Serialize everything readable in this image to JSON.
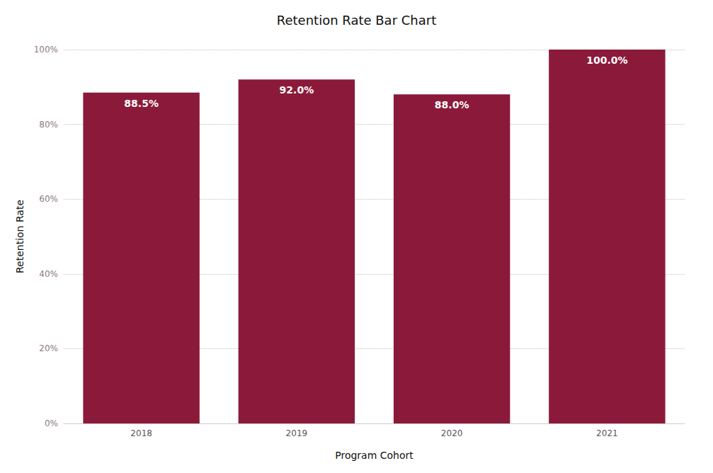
{
  "chart_data": {
    "type": "bar",
    "title": "Retention Rate Bar Chart",
    "xlabel": "Program Cohort",
    "ylabel": "Retention Rate",
    "categories": [
      "2018",
      "2019",
      "2020",
      "2021"
    ],
    "values": [
      88.5,
      92.0,
      88.0,
      100.0
    ],
    "value_labels": [
      "88.5%",
      "92.0%",
      "88.0%",
      "100.0%"
    ],
    "data_labels": true,
    "color": "#8B1A3A",
    "ylim": [
      0,
      100
    ],
    "yticks": [
      {
        "value": 0,
        "label": "0%"
      },
      {
        "value": 20,
        "label": "20%"
      },
      {
        "value": 40,
        "label": "40%"
      },
      {
        "value": 60,
        "label": "60%"
      },
      {
        "value": 80,
        "label": "80%"
      },
      {
        "value": 100,
        "label": "100%"
      }
    ],
    "grid": true
  }
}
